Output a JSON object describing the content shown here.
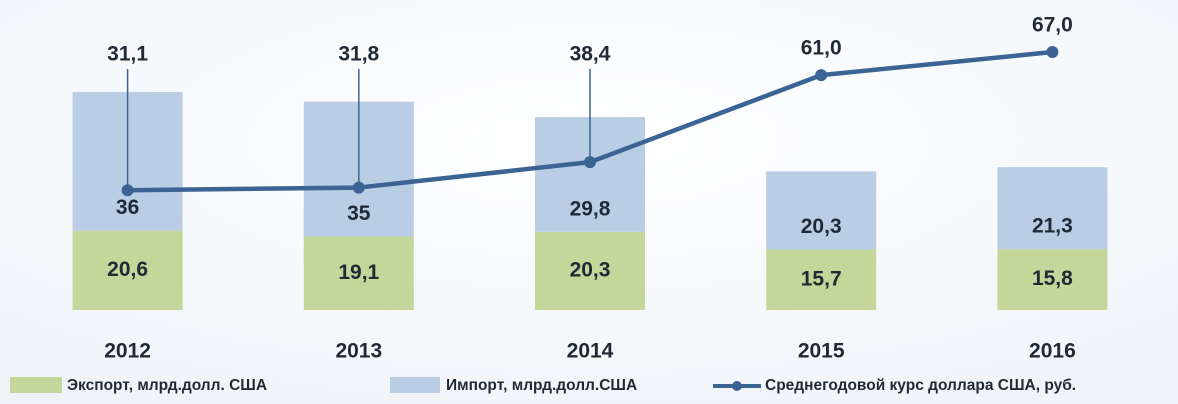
{
  "chart_data": {
    "type": "bar+line",
    "categories": [
      "2012",
      "2013",
      "2014",
      "2015",
      "2016"
    ],
    "series": [
      {
        "name": "Экспорт, млрд.долл. США",
        "color": "#c4d79b",
        "values": [
          20.6,
          19.1,
          20.3,
          15.7,
          15.8
        ],
        "value_labels": [
          "20,6",
          "19,1",
          "20,3",
          "15,7",
          "15,8"
        ]
      },
      {
        "name": "Импорт, млрд.долл.США",
        "color": "#b9cde5",
        "values": [
          36,
          35,
          29.8,
          20.3,
          21.3
        ],
        "value_labels": [
          "36",
          "35",
          "29,8",
          "20,3",
          "21,3"
        ]
      },
      {
        "name": "Среднегодовой курс доллара США, руб.",
        "color": "#3b6494",
        "axis": "y2",
        "values": [
          31.1,
          31.8,
          38.4,
          61.0,
          67.0
        ],
        "value_labels": [
          "31,1",
          "31,8",
          "38,4",
          "61,0",
          "67,0"
        ]
      }
    ],
    "ylim": [
      0,
      80
    ],
    "y2lim": [
      0,
      80
    ],
    "stacked": true
  }
}
